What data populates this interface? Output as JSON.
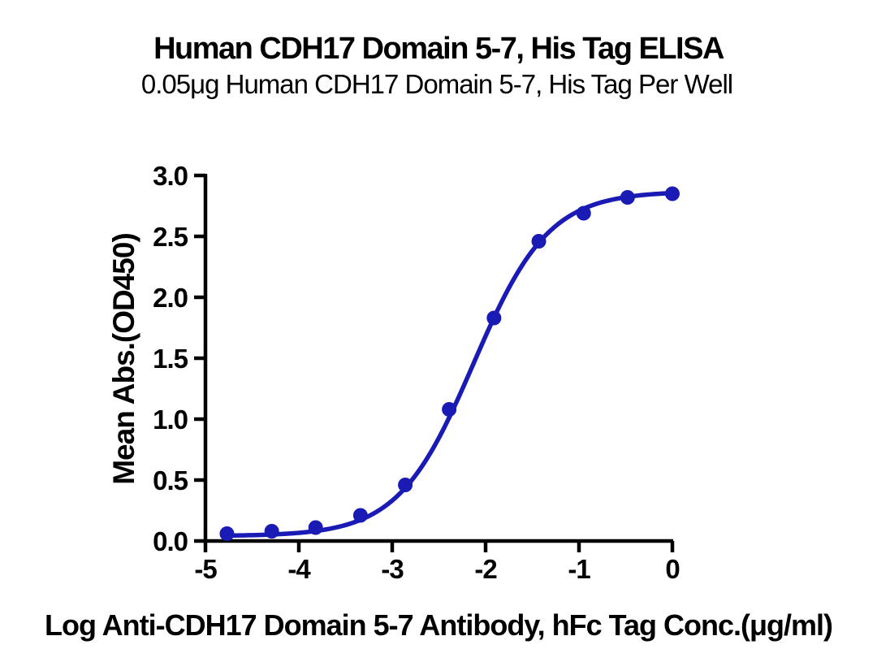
{
  "chart_data": {
    "type": "scatter",
    "title": "Human CDH17 Domain 5-7, His Tag ELISA",
    "subtitle": "0.05μg Human CDH17 Domain 5-7, His Tag Per Well",
    "xlabel": "Log Anti-CDH17 Domain 5-7 Antibody, hFc Tag Conc.(μg/ml)",
    "ylabel": "Mean Abs.(OD450)",
    "xlim": [
      -5,
      0
    ],
    "ylim": [
      0,
      3
    ],
    "grid": false,
    "legend": false,
    "x_ticks": [
      -5,
      -4,
      -3,
      -2,
      -1,
      0
    ],
    "x_tick_labels": [
      "-5",
      "-4",
      "-3",
      "-2",
      "-1",
      "0"
    ],
    "y_ticks": [
      0,
      0.5,
      1.0,
      1.5,
      2.0,
      2.5,
      3.0
    ],
    "y_tick_labels": [
      "0.0",
      "0.5",
      "1.0",
      "1.5",
      "2.0",
      "2.5",
      "3.0"
    ],
    "series": [
      {
        "marker": "circle",
        "x": [
          -4.77,
          -4.29,
          -3.82,
          -3.34,
          -2.86,
          -2.39,
          -1.91,
          -1.43,
          -0.95,
          -0.48,
          0.0
        ],
        "y": [
          0.06,
          0.08,
          0.11,
          0.21,
          0.46,
          1.08,
          1.83,
          2.46,
          2.69,
          2.82,
          2.85
        ]
      }
    ],
    "curve_fit": {
      "model": "4PL",
      "bottom": 0.04,
      "top": 2.87,
      "log_ec50": -2.13,
      "hill": 1.08,
      "x_start": -4.77,
      "x_end": 0.0
    },
    "colors": {
      "curve": "#1A1AB5",
      "marker": "#1A1AB5",
      "axis": "#000000",
      "text": "#000000",
      "background": "#ffffff"
    }
  }
}
